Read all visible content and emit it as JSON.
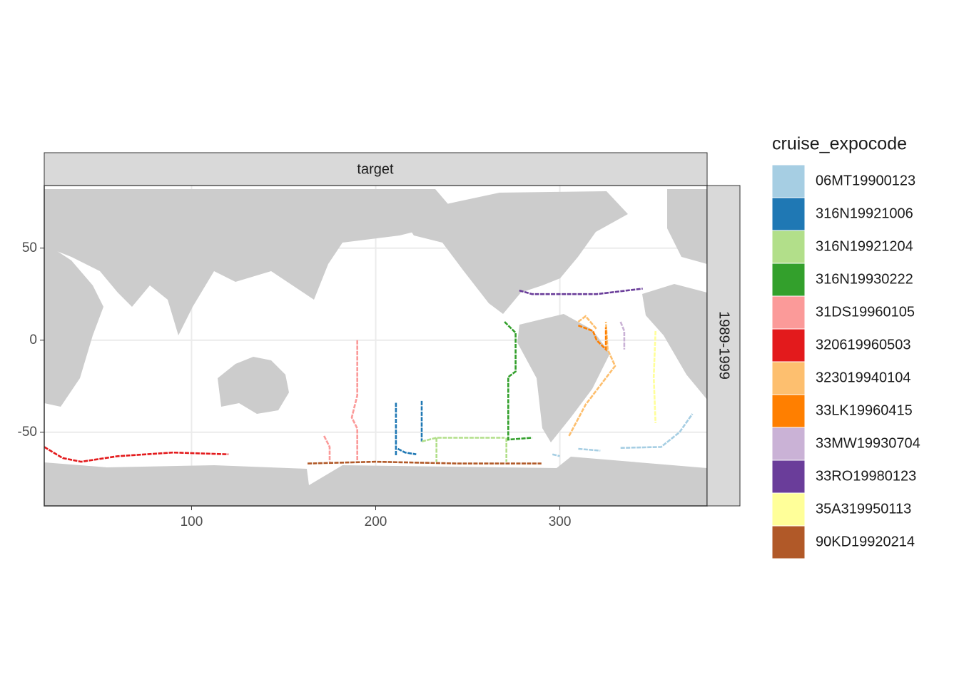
{
  "chart_data": {
    "type": "map",
    "facet_top": "target",
    "facet_right": "1989-1999",
    "legend_title": "cruise_expocode",
    "xlim": [
      20,
      380
    ],
    "ylim": [
      -90,
      84
    ],
    "xticks": [
      100,
      200,
      300
    ],
    "yticks": [
      -50,
      0,
      50
    ],
    "grid": true,
    "series": [
      {
        "name": "06MT19900123",
        "color": "#a6cee3",
        "x": [
          296,
          300,
          null,
          310,
          322,
          null,
          333,
          355,
          365,
          372
        ],
        "y": [
          -62,
          -63,
          null,
          -59,
          -60,
          null,
          -58.5,
          -58,
          -50,
          -40
        ]
      },
      {
        "name": "316N19921006",
        "color": "#1f78b4",
        "x": [
          211,
          211,
          null,
          225,
          225,
          null,
          212,
          216,
          222
        ],
        "y": [
          -34,
          -63,
          null,
          -33,
          -55,
          null,
          -59,
          -61,
          -62
        ]
      },
      {
        "name": "316N19921204",
        "color": "#b2df8a",
        "x": [
          225,
          233,
          270,
          null,
          233,
          233,
          null,
          271,
          271
        ],
        "y": [
          -55,
          -53,
          -53,
          null,
          -53,
          -66,
          null,
          -53,
          -66
        ]
      },
      {
        "name": "316N19930222",
        "color": "#33a02c",
        "x": [
          270,
          276,
          276,
          272,
          272,
          285
        ],
        "y": [
          10,
          4,
          -17,
          -20,
          -54,
          -53
        ]
      },
      {
        "name": "31DS19960105",
        "color": "#fb9a99",
        "x": [
          190,
          190,
          187,
          190,
          190,
          null,
          172,
          175,
          175
        ],
        "y": [
          0,
          -30,
          -42,
          -48,
          -66,
          null,
          -52,
          -58,
          -66
        ]
      },
      {
        "name": "320619960503",
        "color": "#e31a1c",
        "x": [
          20,
          30,
          40,
          60,
          90,
          120
        ],
        "y": [
          -58,
          -64,
          -66,
          -63,
          -61,
          -62
        ]
      },
      {
        "name": "323019940104",
        "color": "#fdbf6f",
        "x": [
          305,
          314,
          330,
          326,
          325,
          null,
          310,
          314,
          320
        ],
        "y": [
          -52,
          -35,
          -14,
          -5,
          10,
          null,
          10,
          13,
          6
        ]
      },
      {
        "name": "33LK19960415",
        "color": "#ff7f00",
        "x": [
          310,
          318,
          320,
          325,
          325
        ],
        "y": [
          8,
          5,
          0,
          -5,
          7
        ]
      },
      {
        "name": "33MW19930704",
        "color": "#cab2d6",
        "x": [
          333,
          335,
          335
        ],
        "y": [
          10,
          5,
          -5
        ]
      },
      {
        "name": "33RO19980123",
        "color": "#6a3d9a",
        "x": [
          278,
          285,
          320,
          345
        ],
        "y": [
          27,
          25,
          25,
          28
        ]
      },
      {
        "name": "35A319950113",
        "color": "#ffff99",
        "x": [
          352,
          351,
          352
        ],
        "y": [
          5,
          -20,
          -45
        ]
      },
      {
        "name": "90KD19920214",
        "color": "#b15928",
        "x": [
          163,
          200,
          245,
          290
        ],
        "y": [
          -67,
          -66,
          -67,
          -67
        ]
      }
    ]
  }
}
